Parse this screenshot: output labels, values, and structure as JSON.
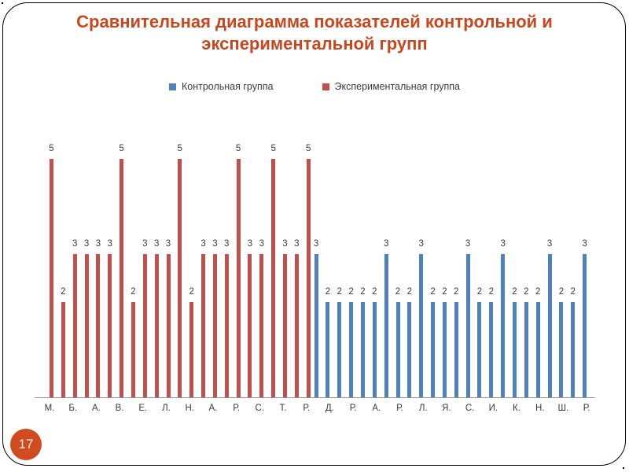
{
  "slide": {
    "title_line1": "Сравнительная диаграмма показателей контрольной и",
    "title_line2": "экспериментальной групп",
    "page_number": "17"
  },
  "colors": {
    "title": "#C5481E",
    "experimental": "#C0504D",
    "control": "#4F81BD",
    "label": "#3A3A3A",
    "axis_line": "#969696",
    "badge_background": "#D04B20",
    "badge_text": "#F7F1E6",
    "frame_border": "#000000"
  },
  "chart_data": {
    "type": "bar",
    "title": "Сравнительная диаграмма показателей контрольной и экспериментальной групп",
    "legend": [
      {
        "name": "Контрольная группа",
        "color_key": "control"
      },
      {
        "name": "Экспериментальная группа",
        "color_key": "experimental"
      }
    ],
    "legend_position": "top-center",
    "ylim": [
      0,
      5
    ],
    "grid": false,
    "y_axis_visible": false,
    "value_labels": true,
    "bars": [
      {
        "x": "М.",
        "value": 5,
        "group": "experimental"
      },
      {
        "x": "",
        "value": 2,
        "group": "experimental"
      },
      {
        "x": "Б.",
        "value": 3,
        "group": "experimental"
      },
      {
        "x": "",
        "value": 3,
        "group": "experimental"
      },
      {
        "x": "А.",
        "value": 3,
        "group": "experimental"
      },
      {
        "x": "",
        "value": 3,
        "group": "experimental"
      },
      {
        "x": "В.",
        "value": 5,
        "group": "experimental"
      },
      {
        "x": "",
        "value": 2,
        "group": "experimental"
      },
      {
        "x": "Е.",
        "value": 3,
        "group": "experimental"
      },
      {
        "x": "",
        "value": 3,
        "group": "experimental"
      },
      {
        "x": "Л.",
        "value": 3,
        "group": "experimental"
      },
      {
        "x": "",
        "value": 5,
        "group": "experimental"
      },
      {
        "x": "Н.",
        "value": 2,
        "group": "experimental"
      },
      {
        "x": "",
        "value": 3,
        "group": "experimental"
      },
      {
        "x": "А.",
        "value": 3,
        "group": "experimental"
      },
      {
        "x": "",
        "value": 3,
        "group": "experimental"
      },
      {
        "x": "Р.",
        "value": 5,
        "group": "experimental"
      },
      {
        "x": "",
        "value": 3,
        "group": "experimental"
      },
      {
        "x": "С.",
        "value": 3,
        "group": "experimental"
      },
      {
        "x": "",
        "value": 5,
        "group": "experimental"
      },
      {
        "x": "Т.",
        "value": 3,
        "group": "experimental"
      },
      {
        "x": "",
        "value": 3,
        "group": "experimental"
      },
      {
        "x": "Р.",
        "value": 5,
        "group": "experimental"
      },
      {
        "x": "",
        "value": 3,
        "group": "control"
      },
      {
        "x": "Д.",
        "value": 2,
        "group": "control"
      },
      {
        "x": "",
        "value": 2,
        "group": "control"
      },
      {
        "x": "Р.",
        "value": 2,
        "group": "control"
      },
      {
        "x": "",
        "value": 2,
        "group": "control"
      },
      {
        "x": "А.",
        "value": 2,
        "group": "control"
      },
      {
        "x": "",
        "value": 3,
        "group": "control"
      },
      {
        "x": "Р.",
        "value": 2,
        "group": "control"
      },
      {
        "x": "",
        "value": 2,
        "group": "control"
      },
      {
        "x": "Л.",
        "value": 3,
        "group": "control"
      },
      {
        "x": "",
        "value": 2,
        "group": "control"
      },
      {
        "x": "Я.",
        "value": 2,
        "group": "control"
      },
      {
        "x": "",
        "value": 2,
        "group": "control"
      },
      {
        "x": "С.",
        "value": 3,
        "group": "control"
      },
      {
        "x": "",
        "value": 2,
        "group": "control"
      },
      {
        "x": "И.",
        "value": 2,
        "group": "control"
      },
      {
        "x": "",
        "value": 3,
        "group": "control"
      },
      {
        "x": "К.",
        "value": 2,
        "group": "control"
      },
      {
        "x": "",
        "value": 2,
        "group": "control"
      },
      {
        "x": "Н.",
        "value": 2,
        "group": "control"
      },
      {
        "x": "",
        "value": 3,
        "group": "control"
      },
      {
        "x": "Ш.",
        "value": 2,
        "group": "control"
      },
      {
        "x": "",
        "value": 2,
        "group": "control"
      },
      {
        "x": "Р.",
        "value": 3,
        "group": "control"
      }
    ]
  }
}
